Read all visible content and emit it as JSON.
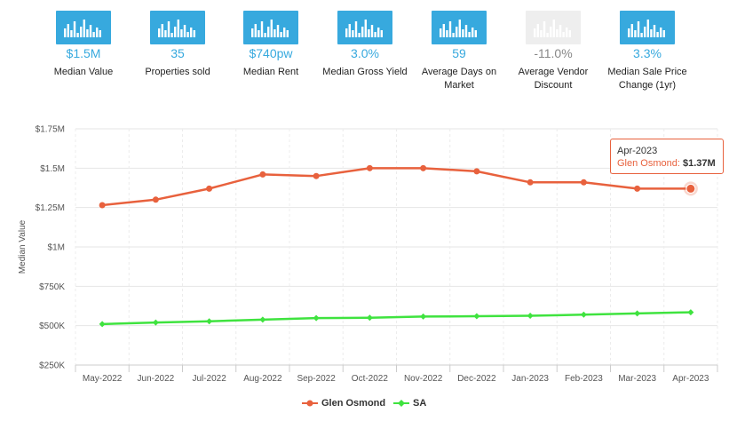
{
  "stats": [
    {
      "value": "$1.5M",
      "label": "Median Value",
      "icon": "bar-chart-icon",
      "active": true
    },
    {
      "value": "35",
      "label": "Properties sold",
      "icon": "bar-chart-icon",
      "active": true
    },
    {
      "value": "$740pw",
      "label": "Median Rent",
      "icon": "bar-chart-icon",
      "active": true
    },
    {
      "value": "3.0%",
      "label": "Median Gross Yield",
      "icon": "bar-chart-icon",
      "active": true
    },
    {
      "value": "59",
      "label": "Average Days on Market",
      "icon": "bar-chart-icon",
      "active": true
    },
    {
      "value": "-11.0%",
      "label": "Average Vendor Discount",
      "icon": "bar-chart-icon",
      "active": false
    },
    {
      "value": "3.3%",
      "label": "Median Sale Price Change (1yr)",
      "icon": "bar-chart-icon",
      "active": true
    }
  ],
  "colors": {
    "accent": "#37a9de",
    "inactive": "#eeeeee",
    "value_text": "#37a9de",
    "inactive_text": "#888888",
    "series_glen": "#e8613d",
    "series_sa": "#3fe33f"
  },
  "tooltip": {
    "date": "Apr-2023",
    "series": "Glen Osmond",
    "value": "$1.37M"
  },
  "chart_data": {
    "type": "line",
    "ylabel": "Median Value",
    "xlabel": "",
    "categories": [
      "May-2022",
      "Jun-2022",
      "Jul-2022",
      "Aug-2022",
      "Sep-2022",
      "Oct-2022",
      "Nov-2022",
      "Dec-2022",
      "Jan-2023",
      "Feb-2023",
      "Mar-2023",
      "Apr-2023"
    ],
    "ylim": [
      250000,
      1750000
    ],
    "yticks": [
      250000,
      500000,
      750000,
      1000000,
      1250000,
      1500000,
      1750000
    ],
    "ytick_labels": [
      "$250K",
      "$500K",
      "$750K",
      "$1M",
      "$1.25M",
      "$1.5M",
      "$1.75M"
    ],
    "grid": true,
    "legend_position": "bottom",
    "series": [
      {
        "name": "Glen Osmond",
        "values": [
          1265000,
          1300000,
          1370000,
          1460000,
          1450000,
          1500000,
          1500000,
          1480000,
          1410000,
          1410000,
          1370000,
          1370000
        ]
      },
      {
        "name": "SA",
        "values": [
          510000,
          520000,
          528000,
          538000,
          548000,
          550000,
          558000,
          560000,
          563000,
          570000,
          578000,
          585000
        ]
      }
    ]
  }
}
